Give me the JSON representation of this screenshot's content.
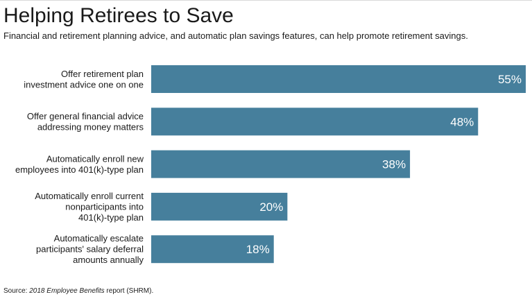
{
  "header": {
    "title": "Helping Retirees to Save",
    "subtitle": "Financial and retirement planning advice, and automatic plan savings features, can help promote retirement savings."
  },
  "footer": {
    "source_prefix": "Source: ",
    "source_title": "2018 Employee Benefits",
    "source_suffix": " report (SHRM)."
  },
  "colors": {
    "bar": "#467f9c",
    "value_text": "#ffffff"
  },
  "chart_data": {
    "type": "bar",
    "orientation": "horizontal",
    "title": "Helping Retirees to Save",
    "subtitle": "Financial and retirement planning advice, and automatic plan savings features, can help promote retirement savings.",
    "categories": [
      [
        "Offer retirement plan",
        "investment advice one on one"
      ],
      [
        "Offer general financial advice",
        "addressing money matters"
      ],
      [
        "Automatically enroll new",
        "employees into 401(k)-type plan"
      ],
      [
        "Automatically enroll current",
        "nonparticipants into",
        "401(k)-type plan"
      ],
      [
        "Automatically escalate",
        "participants' salary deferral",
        "amounts annually"
      ]
    ],
    "values": [
      55,
      48,
      38,
      20,
      18
    ],
    "value_labels": [
      "55%",
      "48%",
      "38%",
      "20%",
      "18%"
    ],
    "unit": "%",
    "xlim": [
      0,
      55
    ],
    "grid": false,
    "legend": "none"
  }
}
